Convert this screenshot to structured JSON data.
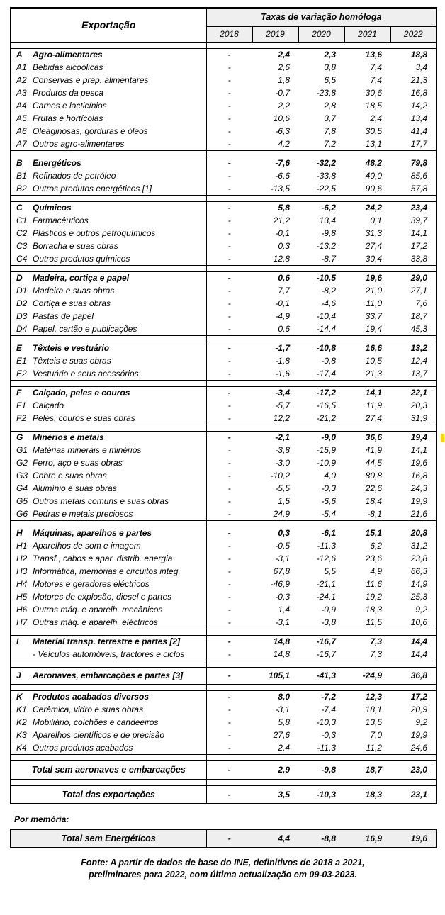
{
  "header": {
    "title": "Exportação",
    "group_title": "Taxas de variação homóloga",
    "years": [
      "2018",
      "2019",
      "2020",
      "2021",
      "2022"
    ]
  },
  "sections": [
    {
      "rows": [
        {
          "code": "A",
          "label": "Agro-alimentares",
          "bold": true,
          "values": [
            "-",
            "2,4",
            "2,3",
            "13,6",
            "18,8"
          ]
        },
        {
          "code": "A1",
          "label": "Bebidas alcoólicas",
          "bold": false,
          "values": [
            "-",
            "2,6",
            "3,8",
            "7,4",
            "3,4"
          ]
        },
        {
          "code": "A2",
          "label": "Conservas e prep. alimentares",
          "bold": false,
          "values": [
            "-",
            "1,8",
            "6,5",
            "7,4",
            "21,3"
          ]
        },
        {
          "code": "A3",
          "label": "Produtos da pesca",
          "bold": false,
          "values": [
            "-",
            "-0,7",
            "-23,8",
            "30,6",
            "16,8"
          ]
        },
        {
          "code": "A4",
          "label": "Carnes e lacticínios",
          "bold": false,
          "values": [
            "-",
            "2,2",
            "2,8",
            "18,5",
            "14,2"
          ]
        },
        {
          "code": "A5",
          "label": "Frutas e hortícolas",
          "bold": false,
          "values": [
            "-",
            "10,6",
            "3,7",
            "2,4",
            "13,4"
          ]
        },
        {
          "code": "A6",
          "label": "Oleaginosas, gorduras e óleos",
          "bold": false,
          "values": [
            "-",
            "-6,3",
            "7,8",
            "30,5",
            "41,4"
          ]
        },
        {
          "code": "A7",
          "label": "Outros agro-alimentares",
          "bold": false,
          "values": [
            "-",
            "4,2",
            "7,2",
            "13,1",
            "17,7"
          ]
        }
      ]
    },
    {
      "rows": [
        {
          "code": "B",
          "label": "Energéticos",
          "bold": true,
          "values": [
            "-",
            "-7,6",
            "-32,2",
            "48,2",
            "79,8"
          ]
        },
        {
          "code": "B1",
          "label": "Refinados de petróleo",
          "bold": false,
          "values": [
            "-",
            "-6,6",
            "-33,8",
            "40,0",
            "85,6"
          ]
        },
        {
          "code": "B2",
          "label": "Outros produtos energéticos [1]",
          "bold": false,
          "values": [
            "-",
            "-13,5",
            "-22,5",
            "90,6",
            "57,8"
          ]
        }
      ]
    },
    {
      "rows": [
        {
          "code": "C",
          "label": "Químicos",
          "bold": true,
          "values": [
            "-",
            "5,8",
            "-6,2",
            "24,2",
            "23,4"
          ]
        },
        {
          "code": "C1",
          "label": "Farmacêuticos",
          "bold": false,
          "values": [
            "-",
            "21,2",
            "13,4",
            "0,1",
            "39,7"
          ]
        },
        {
          "code": "C2",
          "label": "Plásticos e outros petroquímicos",
          "bold": false,
          "values": [
            "-",
            "-0,1",
            "-9,8",
            "31,3",
            "14,1"
          ]
        },
        {
          "code": "C3",
          "label": "Borracha e suas obras",
          "bold": false,
          "values": [
            "-",
            "0,3",
            "-13,2",
            "27,4",
            "17,2"
          ]
        },
        {
          "code": "C4",
          "label": "Outros produtos químicos",
          "bold": false,
          "values": [
            "-",
            "12,8",
            "-8,7",
            "30,4",
            "33,8"
          ]
        }
      ]
    },
    {
      "rows": [
        {
          "code": "D",
          "label": "Madeira, cortiça e papel",
          "bold": true,
          "values": [
            "-",
            "0,6",
            "-10,5",
            "19,6",
            "29,0"
          ]
        },
        {
          "code": "D1",
          "label": "Madeira e suas obras",
          "bold": false,
          "values": [
            "-",
            "7,7",
            "-8,2",
            "21,0",
            "27,1"
          ]
        },
        {
          "code": "D2",
          "label": "Cortiça e suas obras",
          "bold": false,
          "values": [
            "-",
            "-0,1",
            "-4,6",
            "11,0",
            "7,6"
          ]
        },
        {
          "code": "D3",
          "label": "Pastas de papel",
          "bold": false,
          "values": [
            "-",
            "-4,9",
            "-10,4",
            "33,7",
            "18,7"
          ]
        },
        {
          "code": "D4",
          "label": "Papel, cartão e publicações",
          "bold": false,
          "values": [
            "-",
            "0,6",
            "-14,4",
            "19,4",
            "45,3"
          ]
        }
      ]
    },
    {
      "rows": [
        {
          "code": "E",
          "label": "Têxteis e vestuário",
          "bold": true,
          "values": [
            "-",
            "-1,7",
            "-10,8",
            "16,6",
            "13,2"
          ]
        },
        {
          "code": "E1",
          "label": "Têxteis e suas obras",
          "bold": false,
          "values": [
            "-",
            "-1,8",
            "-0,8",
            "10,5",
            "12,4"
          ]
        },
        {
          "code": "E2",
          "label": "Vestuário e seus acessórios",
          "bold": false,
          "values": [
            "-",
            "-1,6",
            "-17,4",
            "21,3",
            "13,7"
          ]
        }
      ]
    },
    {
      "rows": [
        {
          "code": "F",
          "label": "Calçado, peles e couros",
          "bold": true,
          "values": [
            "-",
            "-3,4",
            "-17,2",
            "14,1",
            "22,1"
          ]
        },
        {
          "code": "F1",
          "label": "Calçado",
          "bold": false,
          "values": [
            "-",
            "-5,7",
            "-16,5",
            "11,9",
            "20,3"
          ]
        },
        {
          "code": "F2",
          "label": "Peles, couros e suas obras",
          "bold": false,
          "values": [
            "-",
            "12,2",
            "-21,2",
            "27,4",
            "31,9"
          ]
        }
      ]
    },
    {
      "rows": [
        {
          "code": "G",
          "label": "Minérios e metais",
          "bold": true,
          "values": [
            "-",
            "-2,1",
            "-9,0",
            "36,6",
            "19,4"
          ]
        },
        {
          "code": "G1",
          "label": "Matérias minerais e minérios",
          "bold": false,
          "values": [
            "-",
            "-3,8",
            "-15,9",
            "41,9",
            "14,1"
          ]
        },
        {
          "code": "G2",
          "label": "Ferro, aço e suas obras",
          "bold": false,
          "values": [
            "-",
            "-3,0",
            "-10,9",
            "44,5",
            "19,6"
          ]
        },
        {
          "code": "G3",
          "label": "Cobre e suas obras",
          "bold": false,
          "values": [
            "-",
            "-10,2",
            "4,0",
            "80,8",
            "16,8"
          ]
        },
        {
          "code": "G4",
          "label": "Alumínio e suas obras",
          "bold": false,
          "values": [
            "-",
            "-5,5",
            "-0,3",
            "22,6",
            "24,3"
          ]
        },
        {
          "code": "G5",
          "label": "Outros metais comuns e suas obras",
          "bold": false,
          "values": [
            "-",
            "1,5",
            "-6,6",
            "18,4",
            "19,9"
          ]
        },
        {
          "code": "G6",
          "label": "Pedras e metais preciosos",
          "bold": false,
          "values": [
            "-",
            "24,9",
            "-5,4",
            "-8,1",
            "21,6"
          ]
        }
      ]
    },
    {
      "rows": [
        {
          "code": "H",
          "label": "Máquinas, aparelhos e partes",
          "bold": true,
          "values": [
            "-",
            "0,3",
            "-6,1",
            "15,1",
            "20,8"
          ]
        },
        {
          "code": "H1",
          "label": "Aparelhos de som e imagem",
          "bold": false,
          "values": [
            "-",
            "-0,5",
            "-11,3",
            "6,2",
            "31,2"
          ]
        },
        {
          "code": "H2",
          "label": "Transf., cabos e apar. distrib. energia",
          "bold": false,
          "values": [
            "-",
            "-3,1",
            "-12,6",
            "23,6",
            "23,8"
          ]
        },
        {
          "code": "H3",
          "label": "Informática, memórias e circuitos integ.",
          "bold": false,
          "values": [
            "-",
            "67,8",
            "5,5",
            "4,9",
            "66,3"
          ]
        },
        {
          "code": "H4",
          "label": "Motores e geradores eléctricos",
          "bold": false,
          "values": [
            "-",
            "-46,9",
            "-21,1",
            "11,6",
            "14,9"
          ]
        },
        {
          "code": "H5",
          "label": "Motores de explosão, diesel e partes",
          "bold": false,
          "values": [
            "-",
            "-0,3",
            "-24,1",
            "19,2",
            "25,3"
          ]
        },
        {
          "code": "H6",
          "label": "Outras máq. e aparelh. mecânicos",
          "bold": false,
          "values": [
            "-",
            "1,4",
            "-0,9",
            "18,3",
            "9,2"
          ]
        },
        {
          "code": "H7",
          "label": "Outras máq. e aparelh. eléctricos",
          "bold": false,
          "values": [
            "-",
            "-3,1",
            "-3,8",
            "11,5",
            "10,6"
          ]
        }
      ]
    },
    {
      "rows": [
        {
          "code": "I",
          "label": "Material transp. terrestre e partes  [2]",
          "bold": true,
          "values": [
            "-",
            "14,8",
            "-16,7",
            "7,3",
            "14,4"
          ]
        },
        {
          "code": "",
          "label": "- Veículos automóveis, tractores e ciclos",
          "bold": false,
          "values": [
            "-",
            "14,8",
            "-16,7",
            "7,3",
            "14,4"
          ]
        }
      ]
    },
    {
      "rows": [
        {
          "code": "J",
          "label": "Aeronaves, embarcações e partes  [3]",
          "bold": true,
          "values": [
            "-",
            "105,1",
            "-41,3",
            "-24,9",
            "36,8"
          ]
        }
      ]
    },
    {
      "rows": [
        {
          "code": "K",
          "label": "Produtos acabados diversos",
          "bold": true,
          "values": [
            "-",
            "8,0",
            "-7,2",
            "12,3",
            "17,2"
          ]
        },
        {
          "code": "K1",
          "label": "Cerâmica, vidro e suas obras",
          "bold": false,
          "values": [
            "-",
            "-3,1",
            "-7,4",
            "18,1",
            "20,9"
          ]
        },
        {
          "code": "K2",
          "label": "Mobiliário, colchões e candeeiros",
          "bold": false,
          "values": [
            "-",
            "5,8",
            "-10,3",
            "13,5",
            "9,2"
          ]
        },
        {
          "code": "K3",
          "label": "Aparelhos científicos e de precisão",
          "bold": false,
          "values": [
            "-",
            "27,6",
            "-0,3",
            "7,0",
            "19,9"
          ]
        },
        {
          "code": "K4",
          "label": "Outros produtos acabados",
          "bold": false,
          "values": [
            "-",
            "2,4",
            "-11,3",
            "11,2",
            "24,6"
          ]
        }
      ]
    }
  ],
  "totals": [
    {
      "label": "Total sem aeronaves e embarcações",
      "values": [
        "-",
        "2,9",
        "-9,8",
        "18,7",
        "23,0"
      ]
    },
    {
      "label": "Total das exportações",
      "values": [
        "-",
        "3,5",
        "-10,3",
        "18,3",
        "23,1"
      ]
    }
  ],
  "memo": {
    "note_label": "Por memória:",
    "row": {
      "label": "Total sem Energéticos",
      "values": [
        "-",
        "4,4",
        "-8,8",
        "16,9",
        "19,6"
      ]
    }
  },
  "footer": {
    "line1": "Fonte: A partir de dados de base do INE, definitivos de 2018 a 2021,",
    "line2": "preliminares para 2022, com última actualização em 09-03-2023."
  }
}
